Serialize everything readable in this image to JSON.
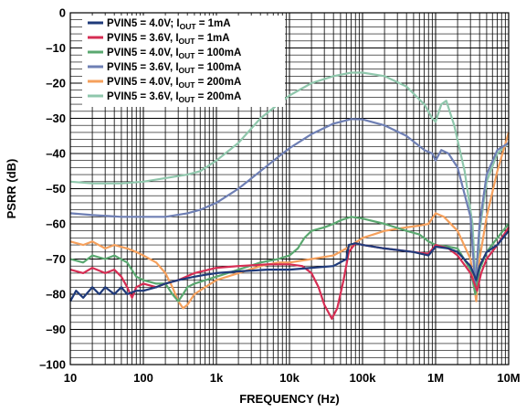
{
  "chart_data": {
    "type": "line",
    "xlabel": "FREQUENCY (Hz)",
    "ylabel": "PSRR (dB)",
    "x_scale": "log",
    "xlim": [
      10,
      10000000
    ],
    "ylim": [
      -100,
      0
    ],
    "grid": true,
    "legend_position": "top-left",
    "x_ticks": [
      {
        "value": 10,
        "label": "10"
      },
      {
        "value": 100,
        "label": "100"
      },
      {
        "value": 1000,
        "label": "1k"
      },
      {
        "value": 10000,
        "label": "10k"
      },
      {
        "value": 100000,
        "label": "100k"
      },
      {
        "value": 1000000,
        "label": "1M"
      },
      {
        "value": 10000000,
        "label": "10M"
      }
    ],
    "y_ticks": [
      {
        "value": 0,
        "label": "0"
      },
      {
        "value": -10,
        "label": "–10"
      },
      {
        "value": -20,
        "label": "–20"
      },
      {
        "value": -30,
        "label": "–30"
      },
      {
        "value": -40,
        "label": "–40"
      },
      {
        "value": -50,
        "label": "–50"
      },
      {
        "value": -60,
        "label": "–60"
      },
      {
        "value": -70,
        "label": "–70"
      },
      {
        "value": -80,
        "label": "–80"
      },
      {
        "value": -90,
        "label": "–90"
      },
      {
        "value": -100,
        "label": "–100"
      }
    ],
    "series": [
      {
        "legend_main": "PVIN5 = 4.0V; I",
        "legend_sub": "OUT",
        "legend_tail": " = 1mA",
        "color": "#1f3a7a",
        "points": [
          [
            10,
            -82
          ],
          [
            12,
            -79
          ],
          [
            15,
            -81
          ],
          [
            20,
            -78
          ],
          [
            25,
            -80
          ],
          [
            30,
            -78
          ],
          [
            40,
            -80
          ],
          [
            50,
            -78
          ],
          [
            60,
            -80
          ],
          [
            80,
            -79
          ],
          [
            100,
            -79
          ],
          [
            150,
            -78
          ],
          [
            200,
            -77
          ],
          [
            300,
            -76
          ],
          [
            500,
            -75
          ],
          [
            700,
            -74.5
          ],
          [
            1000,
            -74
          ],
          [
            2000,
            -73.5
          ],
          [
            5000,
            -73
          ],
          [
            10000,
            -73
          ],
          [
            20000,
            -72.5
          ],
          [
            40000,
            -72
          ],
          [
            60000,
            -70
          ],
          [
            65000,
            -66
          ],
          [
            80000,
            -65.5
          ],
          [
            100000,
            -66
          ],
          [
            200000,
            -67
          ],
          [
            500000,
            -68
          ],
          [
            800000,
            -69
          ],
          [
            1000000,
            -66.5
          ],
          [
            1500000,
            -67
          ],
          [
            2000000,
            -68
          ],
          [
            3000000,
            -72
          ],
          [
            3600000,
            -76
          ],
          [
            4000000,
            -72
          ],
          [
            5000000,
            -68
          ],
          [
            7000000,
            -66
          ],
          [
            10000000,
            -62
          ]
        ]
      },
      {
        "legend_main": "PVIN5 = 3.6V, I",
        "legend_sub": "OUT",
        "legend_tail": " = 1mA",
        "color": "#d62d53",
        "points": [
          [
            10,
            -73
          ],
          [
            15,
            -74
          ],
          [
            20,
            -72.5
          ],
          [
            30,
            -74
          ],
          [
            40,
            -73
          ],
          [
            50,
            -75
          ],
          [
            60,
            -78
          ],
          [
            70,
            -81
          ],
          [
            80,
            -78
          ],
          [
            100,
            -77
          ],
          [
            150,
            -78
          ],
          [
            200,
            -77
          ],
          [
            300,
            -76
          ],
          [
            500,
            -74
          ],
          [
            1000,
            -72.5
          ],
          [
            2000,
            -72
          ],
          [
            5000,
            -71.5
          ],
          [
            10000,
            -71.5
          ],
          [
            15000,
            -72
          ],
          [
            20000,
            -74
          ],
          [
            25000,
            -78
          ],
          [
            30000,
            -83
          ],
          [
            38000,
            -87
          ],
          [
            45000,
            -84
          ],
          [
            55000,
            -76
          ],
          [
            65000,
            -68
          ],
          [
            80000,
            -65.5
          ],
          [
            100000,
            -66
          ],
          [
            200000,
            -67
          ],
          [
            500000,
            -68
          ],
          [
            800000,
            -68.5
          ],
          [
            1000000,
            -66
          ],
          [
            1500000,
            -67
          ],
          [
            2000000,
            -69
          ],
          [
            3000000,
            -74
          ],
          [
            3700000,
            -79
          ],
          [
            4200000,
            -74
          ],
          [
            5000000,
            -70
          ],
          [
            7000000,
            -66
          ],
          [
            10000000,
            -61
          ]
        ]
      },
      {
        "legend_main": "PVIN5 = 4.0V, I",
        "legend_sub": "OUT",
        "legend_tail": " = 100mA",
        "color": "#5aa870",
        "points": [
          [
            10,
            -70
          ],
          [
            15,
            -71
          ],
          [
            20,
            -69
          ],
          [
            30,
            -70
          ],
          [
            40,
            -69
          ],
          [
            60,
            -71
          ],
          [
            80,
            -75
          ],
          [
            100,
            -76
          ],
          [
            150,
            -77
          ],
          [
            200,
            -77
          ],
          [
            250,
            -80
          ],
          [
            300,
            -82
          ],
          [
            350,
            -80
          ],
          [
            400,
            -78
          ],
          [
            500,
            -77
          ],
          [
            1000,
            -75
          ],
          [
            2000,
            -73
          ],
          [
            4000,
            -71
          ],
          [
            7000,
            -70
          ],
          [
            10000,
            -69
          ],
          [
            13000,
            -67
          ],
          [
            16000,
            -64
          ],
          [
            20000,
            -62
          ],
          [
            30000,
            -61
          ],
          [
            40000,
            -60
          ],
          [
            50000,
            -59
          ],
          [
            70000,
            -58
          ],
          [
            100000,
            -58.5
          ],
          [
            200000,
            -60
          ],
          [
            400000,
            -62
          ],
          [
            600000,
            -63
          ],
          [
            800000,
            -65
          ],
          [
            1000000,
            -66
          ],
          [
            1500000,
            -66.5
          ],
          [
            2000000,
            -67
          ],
          [
            3000000,
            -73
          ],
          [
            3500000,
            -80
          ],
          [
            4000000,
            -73
          ],
          [
            5000000,
            -68
          ],
          [
            7000000,
            -64
          ],
          [
            10000000,
            -60
          ]
        ]
      },
      {
        "legend_main": "PVIN5 = 3.6V, I",
        "legend_sub": "OUT",
        "legend_tail": " = 100mA",
        "color": "#6e7fb4",
        "points": [
          [
            10,
            -57
          ],
          [
            20,
            -57.5
          ],
          [
            50,
            -58
          ],
          [
            100,
            -58
          ],
          [
            200,
            -58
          ],
          [
            400,
            -57
          ],
          [
            600,
            -56
          ],
          [
            1000,
            -54
          ],
          [
            2000,
            -50
          ],
          [
            4000,
            -45
          ],
          [
            7000,
            -41
          ],
          [
            10000,
            -38.5
          ],
          [
            20000,
            -34.5
          ],
          [
            40000,
            -31.5
          ],
          [
            70000,
            -30.2
          ],
          [
            100000,
            -30.3
          ],
          [
            200000,
            -32
          ],
          [
            400000,
            -35
          ],
          [
            700000,
            -39
          ],
          [
            900000,
            -40
          ],
          [
            1000000,
            -42
          ],
          [
            1200000,
            -39
          ],
          [
            1500000,
            -40
          ],
          [
            2000000,
            -44
          ],
          [
            3000000,
            -58
          ],
          [
            3500000,
            -78
          ],
          [
            4000000,
            -60
          ],
          [
            5000000,
            -46
          ],
          [
            7000000,
            -39
          ],
          [
            10000000,
            -37
          ]
        ]
      },
      {
        "legend_main": "PVIN5 = 4.0V, I",
        "legend_sub": "OUT",
        "legend_tail": " = 200mA",
        "color": "#f5a05c",
        "points": [
          [
            10,
            -65
          ],
          [
            15,
            -66
          ],
          [
            20,
            -65
          ],
          [
            30,
            -67
          ],
          [
            40,
            -66
          ],
          [
            60,
            -67
          ],
          [
            80,
            -68
          ],
          [
            100,
            -69
          ],
          [
            150,
            -71
          ],
          [
            200,
            -74
          ],
          [
            250,
            -78
          ],
          [
            300,
            -82
          ],
          [
            350,
            -84
          ],
          [
            400,
            -83
          ],
          [
            500,
            -80
          ],
          [
            700,
            -78
          ],
          [
            1000,
            -76
          ],
          [
            2000,
            -74
          ],
          [
            4000,
            -72
          ],
          [
            7000,
            -71
          ],
          [
            10000,
            -71
          ],
          [
            20000,
            -70
          ],
          [
            40000,
            -69
          ],
          [
            60000,
            -67
          ],
          [
            100000,
            -64
          ],
          [
            200000,
            -62
          ],
          [
            400000,
            -61
          ],
          [
            600000,
            -60.5
          ],
          [
            800000,
            -60
          ],
          [
            1000000,
            -57
          ],
          [
            1300000,
            -58
          ],
          [
            2000000,
            -62
          ],
          [
            3000000,
            -70
          ],
          [
            3600000,
            -82
          ],
          [
            4000000,
            -70
          ],
          [
            5000000,
            -58
          ],
          [
            7000000,
            -45
          ],
          [
            10000000,
            -34
          ]
        ]
      },
      {
        "legend_main": "PVIN5 = 3.6V, I",
        "legend_sub": "OUT",
        "legend_tail": " = 200mA",
        "color": "#8fc7ac",
        "points": [
          [
            10,
            -48
          ],
          [
            20,
            -48.5
          ],
          [
            50,
            -48.5
          ],
          [
            100,
            -48
          ],
          [
            200,
            -47
          ],
          [
            400,
            -46
          ],
          [
            600,
            -45
          ],
          [
            1000,
            -42
          ],
          [
            2000,
            -37
          ],
          [
            4000,
            -30
          ],
          [
            7000,
            -26
          ],
          [
            10000,
            -23.5
          ],
          [
            20000,
            -20
          ],
          [
            40000,
            -18
          ],
          [
            70000,
            -17
          ],
          [
            100000,
            -17
          ],
          [
            200000,
            -18
          ],
          [
            400000,
            -21
          ],
          [
            700000,
            -26
          ],
          [
            900000,
            -30
          ],
          [
            1000000,
            -31
          ],
          [
            1200000,
            -26
          ],
          [
            1400000,
            -25
          ],
          [
            1800000,
            -32
          ],
          [
            2500000,
            -45
          ],
          [
            3200000,
            -60
          ],
          [
            3600000,
            -80
          ],
          [
            4000000,
            -62
          ],
          [
            5000000,
            -48
          ],
          [
            7000000,
            -40
          ],
          [
            10000000,
            -37
          ]
        ]
      }
    ]
  }
}
